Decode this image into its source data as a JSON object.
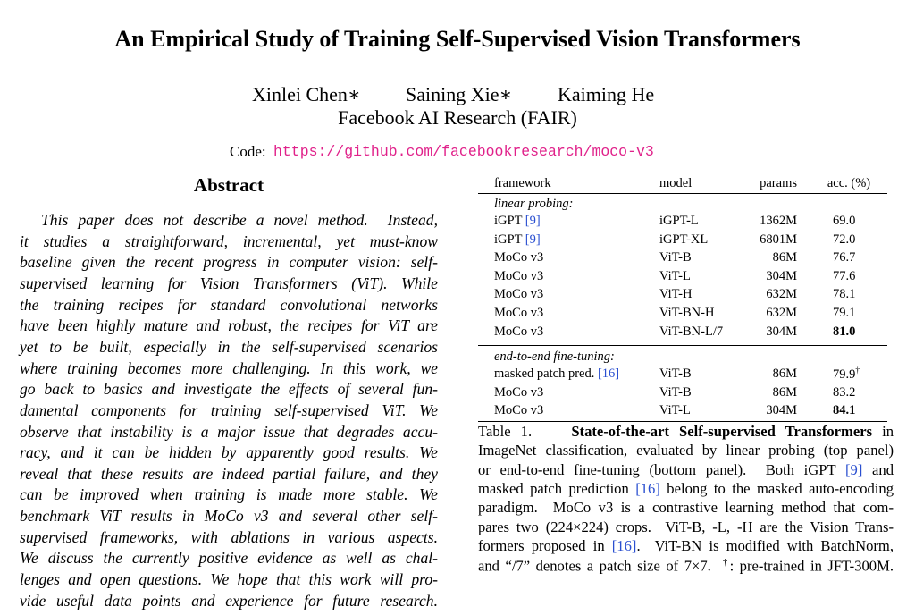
{
  "header": {
    "title": "An Empirical Study of Training Self-Supervised Vision Transformers",
    "authors": [
      "Xinlei Chen∗",
      "Saining Xie∗",
      "Kaiming He"
    ],
    "affiliation": "Facebook AI Research (FAIR)",
    "code_label": "Code:",
    "code_url": "https://github.com/facebookresearch/moco-v3"
  },
  "abstract": {
    "heading": "Abstract",
    "lines": [
      "This paper does not describe a novel method.  Instead,",
      "it studies a straightforward, incremental, yet must-know",
      "baseline given the recent progress in computer vision: self-",
      "supervised learning for Vision Transformers (ViT). While",
      "the training recipes for standard convolutional networks",
      "have been highly mature and robust, the recipes for ViT are",
      "yet to be built, especially in the self-supervised scenarios",
      "where training becomes more challenging. In this work, we",
      "go back to basics and investigate the effects of several fun-",
      "damental components for training self-supervised ViT. We",
      "observe that instability is a major issue that degrades accu-",
      "racy, and it can be hidden by apparently good results. We",
      "reveal that these results are indeed partial failure, and they",
      "can be improved when training is made more stable. We",
      "benchmark ViT results in MoCo v3 and several other self-",
      "supervised frameworks, with ablations in various aspects.",
      "We discuss the currently positive evidence as well as chal-",
      "lenges and open questions. We hope that this work will pro-",
      "vide useful data points and experience for future research."
    ]
  },
  "table": {
    "columns": [
      "framework",
      "model",
      "params",
      "acc. (%)"
    ],
    "sections": [
      {
        "title": "linear probing:",
        "rows": [
          {
            "framework": "iGPT",
            "cite": "[9]",
            "model": "iGPT-L",
            "params": "1362M",
            "acc": "69.0"
          },
          {
            "framework": "iGPT",
            "cite": "[9]",
            "model": "iGPT-XL",
            "params": "6801M",
            "acc": "72.0"
          },
          {
            "framework": "MoCo v3",
            "model": "ViT-B",
            "params": "86M",
            "acc": "76.7"
          },
          {
            "framework": "MoCo v3",
            "model": "ViT-L",
            "params": "304M",
            "acc": "77.6"
          },
          {
            "framework": "MoCo v3",
            "model": "ViT-H",
            "params": "632M",
            "acc": "78.1"
          },
          {
            "framework": "MoCo v3",
            "model": "ViT-BN-H",
            "params": "632M",
            "acc": "79.1"
          },
          {
            "framework": "MoCo v3",
            "model": "ViT-BN-L/7",
            "params": "304M",
            "acc": "81.0",
            "bold": true
          }
        ]
      },
      {
        "title": "end-to-end fine-tuning:",
        "rows": [
          {
            "framework": "masked patch pred.",
            "cite": "[16]",
            "model": "ViT-B",
            "params": "86M",
            "acc": "79.9",
            "mark": "†"
          },
          {
            "framework": "MoCo v3",
            "model": "ViT-B",
            "params": "86M",
            "acc": "83.2"
          },
          {
            "framework": "MoCo v3",
            "model": "ViT-L",
            "params": "304M",
            "acc": "84.1",
            "bold": true
          }
        ]
      }
    ]
  },
  "caption": {
    "label": "Table 1.",
    "title": "State-of-the-art Self-supervised Transformers",
    "lines": [
      "in",
      "ImageNet classification, evaluated by linear probing (top panel)",
      "or end-to-end fine-tuning (bottom panel).  Both iGPT [9] and",
      "masked patch prediction [16] belong to the masked auto-encoding",
      "paradigm.  MoCo v3 is a contrastive learning method that com-",
      "pares two (224×224) crops.  ViT-B, -L, -H are the Vision Trans-",
      "formers proposed in [16].  ViT-BN is modified with BatchNorm,",
      "and “/7” denotes a patch size of 7×7.  †: pre-trained in JFT-300M."
    ]
  }
}
